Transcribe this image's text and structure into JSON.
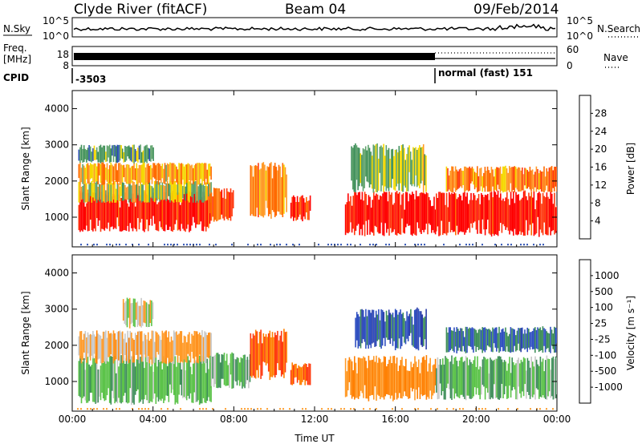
{
  "header": {
    "station": "Clyde River (fitACF)",
    "beam": "Beam 04",
    "date": "09/Feb/2014"
  },
  "summary": {
    "nsky_label": "N.Sky",
    "nsearch_label": "N.Search",
    "noise_ticks": [
      "10^5",
      "10^0"
    ],
    "freq_label": "Freq.",
    "freq_unit": "[MHz]",
    "freq_ticks": [
      "18",
      "8"
    ],
    "nave_label": "Nave",
    "nave_ticks": [
      "60",
      "0"
    ],
    "cpid_label": "CPID",
    "cpid_1": "-3503",
    "cpid_2": "normal (fast) 151"
  },
  "colors": {
    "power": [
      "#0000ff",
      "#2c4fb4",
      "#3f8f5a",
      "#5fa36c",
      "#f5d800",
      "#ff9a28",
      "#ff6a00",
      "#ff3a10",
      "#ff0000"
    ],
    "velocity": [
      "#2c3ea8",
      "#3050c0",
      "#3f8f5a",
      "#5cc34a",
      "#c8c8c8",
      "#ff9a28",
      "#ff7f00",
      "#ff3a10",
      "#ff0000"
    ]
  },
  "chart_data": [
    {
      "type": "heatmap",
      "panel": "power",
      "ylabel": "Slant Range [km]",
      "xlabel": "",
      "x_ticks": [
        "00:00",
        "04:00",
        "08:00",
        "12:00",
        "16:00",
        "20:00",
        "00:00"
      ],
      "y_ticks": [
        "1000",
        "2000",
        "3000",
        "4000"
      ],
      "xlim": [
        0,
        24
      ],
      "ylim": [
        180,
        4500
      ],
      "colorbar_label": "Power [dB]",
      "colorbar_ticks": [
        "4",
        "8",
        "12",
        "16",
        "20",
        "24",
        "28"
      ],
      "colorbar_range": [
        0,
        30
      ],
      "regions": [
        {
          "t0": 0.3,
          "t1": 6.9,
          "r0": 600,
          "r1": 1700,
          "v": 28
        },
        {
          "t0": 0.3,
          "t1": 6.9,
          "r0": 1400,
          "r1": 2000,
          "v": 14
        },
        {
          "t0": 0.3,
          "t1": 6.9,
          "r0": 1900,
          "r1": 2500,
          "v": 18
        },
        {
          "t0": 0.3,
          "t1": 4.0,
          "r0": 2500,
          "r1": 3000,
          "v": 10
        },
        {
          "t0": 6.8,
          "t1": 8.0,
          "r0": 900,
          "r1": 1800,
          "v": 24
        },
        {
          "t0": 8.8,
          "t1": 10.6,
          "r0": 1000,
          "r1": 2500,
          "v": 20
        },
        {
          "t0": 10.8,
          "t1": 11.8,
          "r0": 900,
          "r1": 1600,
          "v": 26
        },
        {
          "t0": 13.5,
          "t1": 18.0,
          "r0": 500,
          "r1": 1700,
          "v": 28
        },
        {
          "t0": 13.8,
          "t1": 17.5,
          "r0": 1700,
          "r1": 3000,
          "v": 12
        },
        {
          "t0": 18.0,
          "t1": 24.0,
          "r0": 500,
          "r1": 1700,
          "v": 28
        },
        {
          "t0": 18.5,
          "t1": 24.0,
          "r0": 1700,
          "r1": 2400,
          "v": 20
        }
      ]
    },
    {
      "type": "heatmap",
      "panel": "velocity",
      "ylabel": "Slant Range [km]",
      "xlabel": "Time UT",
      "x_ticks": [
        "00:00",
        "04:00",
        "08:00",
        "12:00",
        "16:00",
        "20:00",
        "00:00"
      ],
      "y_ticks": [
        "1000",
        "2000",
        "3000",
        "4000"
      ],
      "xlim": [
        0,
        24
      ],
      "ylim": [
        180,
        4500
      ],
      "colorbar_label": "Velocity [m s⁻¹]",
      "colorbar_ticks": [
        "1000",
        "500",
        "100",
        "25",
        "-25",
        "-100",
        "-500",
        "-1000"
      ],
      "colorbar_range": [
        -1200,
        1200
      ],
      "regions": [
        {
          "t0": 0.3,
          "t1": 6.9,
          "r0": 400,
          "r1": 1700,
          "v": 300
        },
        {
          "t0": 0.3,
          "t1": 6.9,
          "r0": 1500,
          "r1": 2400,
          "v": -200
        },
        {
          "t0": 2.5,
          "t1": 4.0,
          "r0": 2500,
          "r1": 3300,
          "v": 40
        },
        {
          "t0": 6.8,
          "t1": 8.8,
          "r0": 800,
          "r1": 1800,
          "v": 300
        },
        {
          "t0": 8.8,
          "t1": 10.6,
          "r0": 1100,
          "r1": 2400,
          "v": -700
        },
        {
          "t0": 10.8,
          "t1": 11.8,
          "r0": 900,
          "r1": 1500,
          "v": -700
        },
        {
          "t0": 13.5,
          "t1": 18.0,
          "r0": 500,
          "r1": 1700,
          "v": -400
        },
        {
          "t0": 14.0,
          "t1": 17.5,
          "r0": 1900,
          "r1": 3000,
          "v": 800
        },
        {
          "t0": 18.0,
          "t1": 24.0,
          "r0": 500,
          "r1": 1700,
          "v": 300
        },
        {
          "t0": 18.5,
          "t1": 24.0,
          "r0": 1800,
          "r1": 2500,
          "v": 700
        }
      ]
    }
  ]
}
